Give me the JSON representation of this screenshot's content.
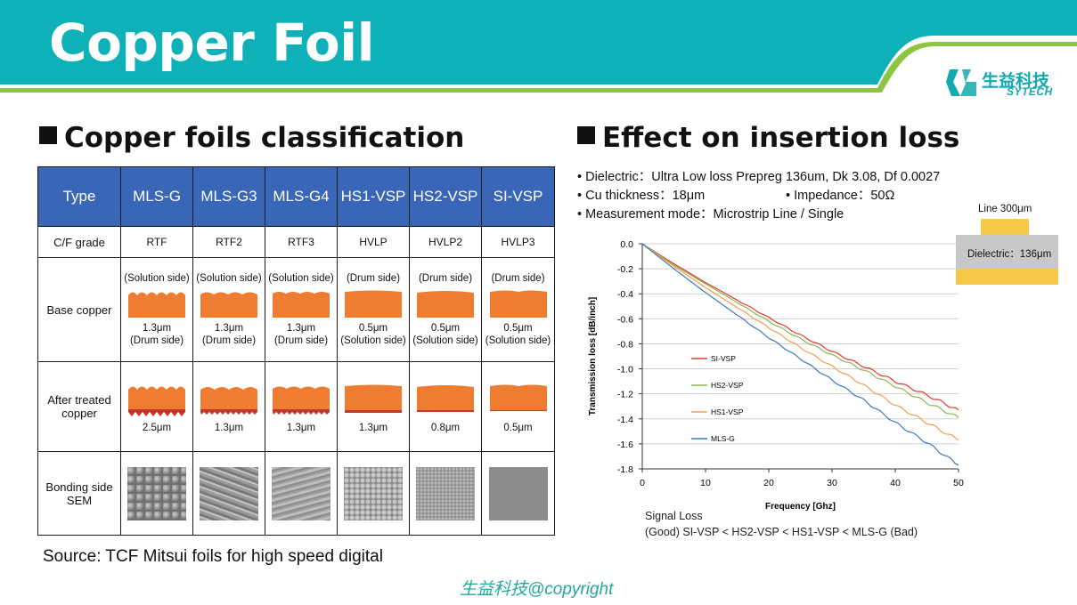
{
  "slide": {
    "title": "Copper Foil",
    "logo": {
      "chinese": "生益科技",
      "english": "SYTECH"
    },
    "colors": {
      "header": "#0db1b7",
      "accent_line": "#8cc63f",
      "table_header": "#3a66b8",
      "copper": "#ee7d31",
      "treated": "#c0392b"
    }
  },
  "left": {
    "heading": "Copper foils classification",
    "table": {
      "columns": [
        "Type",
        "MLS-G",
        "MLS-G3",
        "MLS-G4",
        "HS1-VSP",
        "HS2-VSP",
        "SI-VSP"
      ],
      "cf_grade": {
        "label": "C/F grade",
        "values": [
          "RTF",
          "RTF2",
          "RTF3",
          "HVLP",
          "HVLP2",
          "HVLP3"
        ]
      },
      "base_copper": {
        "label": "Base copper",
        "top": [
          "(Solution side)",
          "(Solution side)",
          "(Solution side)",
          "(Drum side)",
          "(Drum side)",
          "(Drum side)"
        ],
        "value": [
          "1.3μm",
          "1.3μm",
          "1.3μm",
          "0.5μm",
          "0.5μm",
          "0.5μm"
        ],
        "bottom": [
          "(Drum side)",
          "(Drum side)",
          "(Drum side)",
          "(Solution side)",
          "(Solution side)",
          "(Solution side)"
        ]
      },
      "after_treated": {
        "label_line1": "After treated",
        "label_line2": "copper",
        "values": [
          "2.5μm",
          "1.3μm",
          "1.3μm",
          "1.3μm",
          "0.8μm",
          "0.5μm"
        ]
      },
      "bonding": {
        "label_line1": "Bonding side",
        "label_line2": "SEM"
      }
    },
    "source": "Source: TCF Mitsui foils for high speed digital"
  },
  "right": {
    "heading": "Effect on insertion loss",
    "bullets": {
      "dielectric": "• Dielectric：Ultra Low loss Prepreg 136um, Dk 3.08, Df 0.0027",
      "cu_thickness": "• Cu thickness：18μm",
      "impedance": "• Impedance：50Ω",
      "mode": "• Measurement mode：Microstrip Line / Single"
    },
    "inset": {
      "line": "Line 300μm",
      "dielectric": "Dielectric：136μm"
    },
    "signal_loss_title": "Signal Loss",
    "signal_loss_order": "(Good) SI-VSP < HS2-VSP < HS1-VSP < MLS-G (Bad)"
  },
  "chart_data": {
    "type": "line",
    "xlabel": "Frequency [Ghz]",
    "ylabel": "Transmission loss [dB/inch]",
    "xlim": [
      0,
      50
    ],
    "ylim": [
      -1.8,
      0.0
    ],
    "xticks": [
      0,
      10,
      20,
      30,
      40,
      50
    ],
    "yticks": [
      0.0,
      -0.2,
      -0.4,
      -0.6,
      -0.8,
      -1.0,
      -1.2,
      -1.4,
      -1.6,
      -1.8
    ],
    "grid": "horizontal",
    "legend_position": "lower-left",
    "x": [
      0,
      5,
      10,
      15,
      20,
      25,
      30,
      35,
      40,
      45,
      50
    ],
    "series": [
      {
        "name": "SI-VSP",
        "color": "#e23a2e",
        "values": [
          0.0,
          -0.16,
          -0.31,
          -0.45,
          -0.59,
          -0.73,
          -0.86,
          -0.98,
          -1.1,
          -1.21,
          -1.33
        ]
      },
      {
        "name": "HS2-VSP",
        "color": "#8db653",
        "values": [
          0.0,
          -0.17,
          -0.32,
          -0.47,
          -0.62,
          -0.76,
          -0.89,
          -1.01,
          -1.14,
          -1.27,
          -1.39
        ]
      },
      {
        "name": "HS1-VSP",
        "color": "#f0a04b",
        "values": [
          0.0,
          -0.18,
          -0.35,
          -0.51,
          -0.67,
          -0.83,
          -0.98,
          -1.13,
          -1.29,
          -1.43,
          -1.57
        ]
      },
      {
        "name": "MLS-G",
        "color": "#3a7abf",
        "values": [
          0.0,
          -0.2,
          -0.39,
          -0.57,
          -0.75,
          -0.92,
          -1.09,
          -1.25,
          -1.43,
          -1.59,
          -1.77
        ]
      }
    ]
  },
  "footer": {
    "copyright": "生益科技@copyright"
  }
}
